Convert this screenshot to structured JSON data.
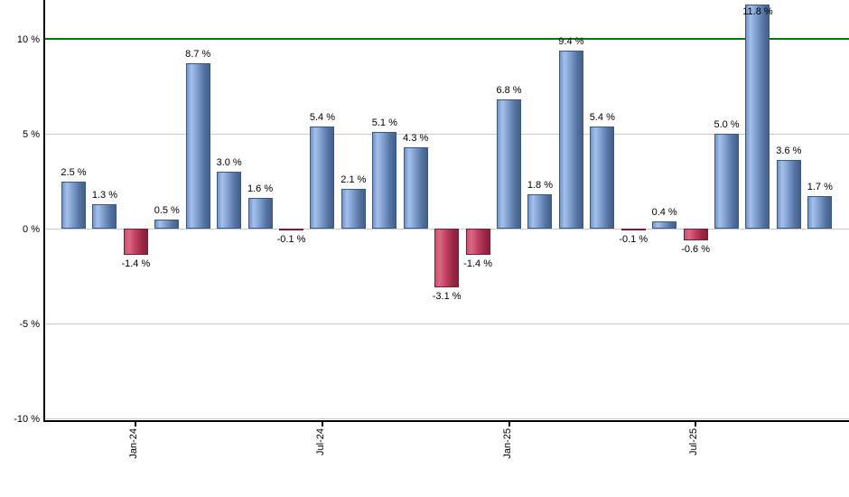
{
  "chart_data": {
    "type": "bar",
    "title": "",
    "xlabel": "",
    "ylabel": "",
    "values": [
      2.5,
      1.3,
      -1.4,
      0.5,
      8.7,
      3.0,
      1.6,
      -0.1,
      5.4,
      2.1,
      5.1,
      4.3,
      -3.1,
      -1.4,
      6.8,
      1.8,
      9.4,
      5.4,
      -0.1,
      0.4,
      -0.6,
      5.0,
      11.8,
      3.6,
      1.7
    ],
    "bar_labels": [
      "2.5 %",
      "1.3 %",
      "-1.4 %",
      "0.5 %",
      "8.7 %",
      "3.0 %",
      "1.6 %",
      "-0.1 %",
      "5.4 %",
      "2.1 %",
      "5.1 %",
      "4.3 %",
      "-3.1 %",
      "-1.4 %",
      "6.8 %",
      "1.8 %",
      "9.4 %",
      "5.4 %",
      "-0.1 %",
      "0.4 %",
      "-0.6 %",
      "5.0 %",
      "11.8 %",
      "3.6 %",
      "1.7 %"
    ],
    "x_ticks": [
      {
        "bar_index": 2,
        "label": "Jan-24"
      },
      {
        "bar_index": 8,
        "label": "Jul-24"
      },
      {
        "bar_index": 14,
        "label": "Jan-25"
      },
      {
        "bar_index": 20,
        "label": "Jul-25"
      }
    ],
    "y_ticks": [
      {
        "value": 10,
        "label": "10 %"
      },
      {
        "value": 5,
        "label": "5 %"
      },
      {
        "value": 0,
        "label": "0 %"
      },
      {
        "value": -5,
        "label": "-5 %"
      },
      {
        "value": -10,
        "label": "-10 %"
      }
    ],
    "ylim": [
      -10.1,
      12.05
    ],
    "grid": true,
    "legend": false,
    "reference_line": {
      "value": 10
    }
  },
  "colors": {
    "background": "#FFFFFF",
    "reference_line": "#007A00",
    "gridline": "#C9C9C9",
    "axis": "#000000",
    "text": "#000000",
    "positive_bar_gradient": [
      "#7095C8",
      "#A6C0EA",
      "#7E9FD0",
      "#54719F",
      "#44608A"
    ],
    "positive_bar_border": "#3D5880",
    "negative_bar_gradient": [
      "#C8516E",
      "#DB6882",
      "#C34465",
      "#9A2644",
      "#8A1F3C"
    ],
    "negative_bar_border": "#7A1A35"
  }
}
